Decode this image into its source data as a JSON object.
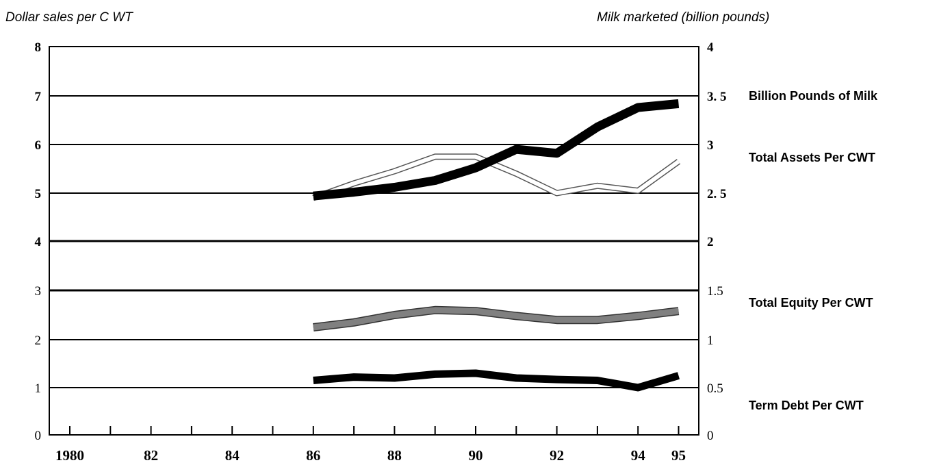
{
  "chart_data": {
    "type": "line",
    "left_axis_title": "Dollar sales per C WT",
    "right_axis_title": "Milk marketed (billion pounds)",
    "x_tick_labels": [
      "1980",
      "82",
      "84",
      "86",
      "88",
      "90",
      "92",
      "94",
      "95"
    ],
    "left_tick_labels": [
      "8",
      "7",
      "6",
      "5",
      "4",
      "3",
      "2",
      "1",
      "0"
    ],
    "right_tick_labels": [
      "4",
      "3. 5",
      "3",
      "2. 5",
      "2",
      "1.5",
      "1",
      "0.5",
      "0"
    ],
    "ylim_left": [
      0,
      8
    ],
    "ylim_right": [
      0,
      4
    ],
    "x": [
      1986,
      1987,
      1988,
      1989,
      1990,
      1991,
      1992,
      1993,
      1994,
      1995
    ],
    "series": [
      {
        "name": "Billion Pounds of Milk",
        "axis": "right",
        "color": "#000000",
        "values": [
          2.47,
          2.51,
          2.56,
          2.63,
          2.76,
          2.95,
          2.91,
          3.18,
          3.38,
          3.42
        ]
      },
      {
        "name": "Total Assets Per CWT",
        "axis": "left",
        "color": "#ffffff",
        "values": [
          4.9,
          5.2,
          5.45,
          5.75,
          5.75,
          5.4,
          5.0,
          5.15,
          5.05,
          5.65
        ]
      },
      {
        "name": "Total Equity Per CWT",
        "axis": "left",
        "color": "#808080",
        "values": [
          2.25,
          2.35,
          2.5,
          2.6,
          2.58,
          2.48,
          2.4,
          2.4,
          2.48,
          2.58
        ]
      },
      {
        "name": "Term Debt Per CWT",
        "axis": "left",
        "color": "#000000",
        "values": [
          1.15,
          1.22,
          1.2,
          1.28,
          1.3,
          1.2,
          1.17,
          1.15,
          1.0,
          1.25
        ]
      }
    ]
  }
}
